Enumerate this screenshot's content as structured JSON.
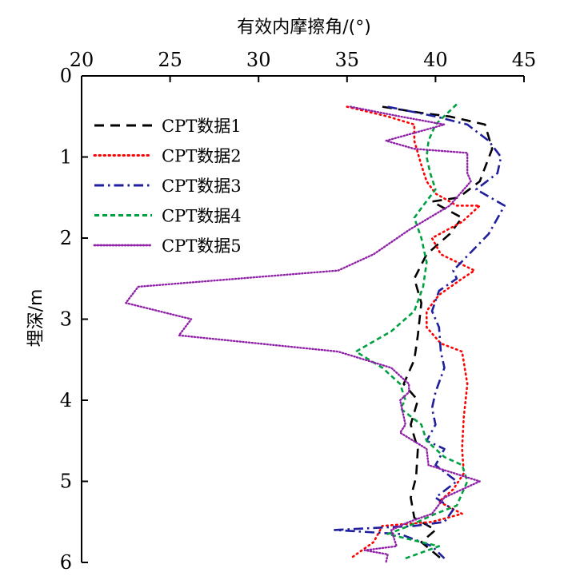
{
  "chart_data": {
    "type": "line",
    "title": "",
    "xlabel": "有效内摩擦角/(°)",
    "ylabel": "埋深/m",
    "x_axis_position": "top",
    "y_axis_inverted": true,
    "xlim": [
      20,
      45
    ],
    "ylim": [
      0,
      6
    ],
    "xticks": [
      "20",
      "25",
      "30",
      "35",
      "40",
      "45"
    ],
    "yticks": [
      "0",
      "1",
      "2",
      "3",
      "4",
      "5",
      "6"
    ],
    "grid": false,
    "legend_position": "top-left",
    "series": [
      {
        "name": "CPT数据1",
        "color": "#000000",
        "dash": "long-dash",
        "points": [
          [
            37.0,
            0.38
          ],
          [
            39.0,
            0.45
          ],
          [
            40.8,
            0.5
          ],
          [
            42.8,
            0.6
          ],
          [
            43.2,
            0.9
          ],
          [
            42.5,
            1.3
          ],
          [
            41.3,
            1.5
          ],
          [
            39.8,
            1.55
          ],
          [
            41.5,
            1.75
          ],
          [
            40.8,
            1.95
          ],
          [
            39.5,
            2.2
          ],
          [
            38.8,
            2.5
          ],
          [
            39.2,
            2.8
          ],
          [
            39.0,
            3.2
          ],
          [
            38.8,
            3.5
          ],
          [
            38.2,
            3.8
          ],
          [
            39.0,
            4.0
          ],
          [
            38.6,
            4.3
          ],
          [
            39.0,
            4.6
          ],
          [
            38.9,
            4.95
          ],
          [
            38.6,
            5.2
          ],
          [
            38.8,
            5.45
          ],
          [
            40.0,
            5.6
          ],
          [
            39.2,
            5.75
          ],
          [
            40.3,
            5.95
          ]
        ]
      },
      {
        "name": "CPT数据2",
        "color": "#ff0000",
        "dash": "dotted",
        "points": [
          [
            35.0,
            0.38
          ],
          [
            37.3,
            0.5
          ],
          [
            38.8,
            0.6
          ],
          [
            38.8,
            0.8
          ],
          [
            39.2,
            1.1
          ],
          [
            39.5,
            1.3
          ],
          [
            40.0,
            1.45
          ],
          [
            41.2,
            1.6
          ],
          [
            42.5,
            1.6
          ],
          [
            41.5,
            1.8
          ],
          [
            39.8,
            2.0
          ],
          [
            40.3,
            2.2
          ],
          [
            42.2,
            2.4
          ],
          [
            41.5,
            2.5
          ],
          [
            40.2,
            2.7
          ],
          [
            39.5,
            2.9
          ],
          [
            39.5,
            3.1
          ],
          [
            40.3,
            3.3
          ],
          [
            41.5,
            3.4
          ],
          [
            41.8,
            3.8
          ],
          [
            41.6,
            4.2
          ],
          [
            41.5,
            4.6
          ],
          [
            41.6,
            4.9
          ],
          [
            41.0,
            5.1
          ],
          [
            40.2,
            5.25
          ],
          [
            41.5,
            5.4
          ],
          [
            39.8,
            5.5
          ],
          [
            37.0,
            5.55
          ],
          [
            36.5,
            5.75
          ],
          [
            35.2,
            5.95
          ]
        ]
      },
      {
        "name": "CPT数据3",
        "color": "#1f1f9e",
        "dash": "dash-dot",
        "points": [
          [
            37.3,
            0.38
          ],
          [
            40.0,
            0.5
          ],
          [
            41.8,
            0.6
          ],
          [
            43.0,
            0.8
          ],
          [
            43.7,
            1.0
          ],
          [
            43.5,
            1.2
          ],
          [
            42.3,
            1.4
          ],
          [
            43.9,
            1.6
          ],
          [
            43.0,
            1.95
          ],
          [
            41.0,
            2.4
          ],
          [
            41.2,
            2.5
          ],
          [
            40.2,
            2.65
          ],
          [
            39.8,
            2.9
          ],
          [
            40.2,
            3.1
          ],
          [
            40.3,
            3.4
          ],
          [
            40.5,
            3.6
          ],
          [
            40.0,
            3.9
          ],
          [
            39.8,
            4.1
          ],
          [
            40.0,
            4.3
          ],
          [
            39.5,
            4.5
          ],
          [
            40.5,
            4.6
          ],
          [
            40.0,
            4.8
          ],
          [
            41.2,
            5.0
          ],
          [
            40.0,
            5.2
          ],
          [
            41.0,
            5.35
          ],
          [
            40.5,
            5.5
          ],
          [
            38.8,
            5.55
          ],
          [
            34.3,
            5.6
          ],
          [
            38.0,
            5.65
          ],
          [
            39.8,
            5.8
          ],
          [
            40.5,
            5.95
          ]
        ]
      },
      {
        "name": "CPT数据4",
        "color": "#00a040",
        "dash": "short-dash",
        "points": [
          [
            41.2,
            0.35
          ],
          [
            40.0,
            0.6
          ],
          [
            39.6,
            0.8
          ],
          [
            39.5,
            1.0
          ],
          [
            39.7,
            1.2
          ],
          [
            40.0,
            1.4
          ],
          [
            39.3,
            1.6
          ],
          [
            38.8,
            1.75
          ],
          [
            39.2,
            2.0
          ],
          [
            39.5,
            2.3
          ],
          [
            39.3,
            2.6
          ],
          [
            38.8,
            2.9
          ],
          [
            37.5,
            3.15
          ],
          [
            35.5,
            3.4
          ],
          [
            37.0,
            3.6
          ],
          [
            38.0,
            3.8
          ],
          [
            38.3,
            4.0
          ],
          [
            38.0,
            4.1
          ],
          [
            39.2,
            4.3
          ],
          [
            39.5,
            4.5
          ],
          [
            40.0,
            4.6
          ],
          [
            40.5,
            4.7
          ],
          [
            41.5,
            4.8
          ],
          [
            41.8,
            5.0
          ],
          [
            41.2,
            5.3
          ],
          [
            40.0,
            5.4
          ],
          [
            38.5,
            5.55
          ],
          [
            37.3,
            5.65
          ],
          [
            39.2,
            5.75
          ],
          [
            40.2,
            5.8
          ],
          [
            38.3,
            5.95
          ]
        ]
      },
      {
        "name": "CPT数据5",
        "color": "#9022a8",
        "dash": "fine-dotted",
        "points": [
          [
            35.2,
            0.38
          ],
          [
            38.0,
            0.5
          ],
          [
            40.5,
            0.6
          ],
          [
            37.2,
            0.8
          ],
          [
            38.8,
            0.9
          ],
          [
            41.8,
            0.95
          ],
          [
            41.8,
            1.2
          ],
          [
            42.0,
            1.3
          ],
          [
            40.8,
            1.6
          ],
          [
            38.5,
            1.9
          ],
          [
            36.5,
            2.2
          ],
          [
            34.5,
            2.4
          ],
          [
            23.2,
            2.6
          ],
          [
            22.5,
            2.8
          ],
          [
            26.2,
            3.0
          ],
          [
            25.5,
            3.2
          ],
          [
            34.5,
            3.4
          ],
          [
            37.5,
            3.6
          ],
          [
            38.5,
            3.8
          ],
          [
            38.5,
            3.9
          ],
          [
            38.0,
            4.0
          ],
          [
            38.3,
            4.3
          ],
          [
            38.0,
            4.4
          ],
          [
            39.5,
            4.6
          ],
          [
            39.6,
            4.8
          ],
          [
            42.5,
            5.0
          ],
          [
            40.5,
            5.2
          ],
          [
            39.8,
            5.4
          ],
          [
            38.5,
            5.5
          ],
          [
            37.5,
            5.6
          ],
          [
            37.8,
            5.8
          ],
          [
            36.0,
            5.85
          ],
          [
            37.3,
            5.9
          ],
          [
            37.2,
            6.0
          ]
        ]
      }
    ]
  }
}
